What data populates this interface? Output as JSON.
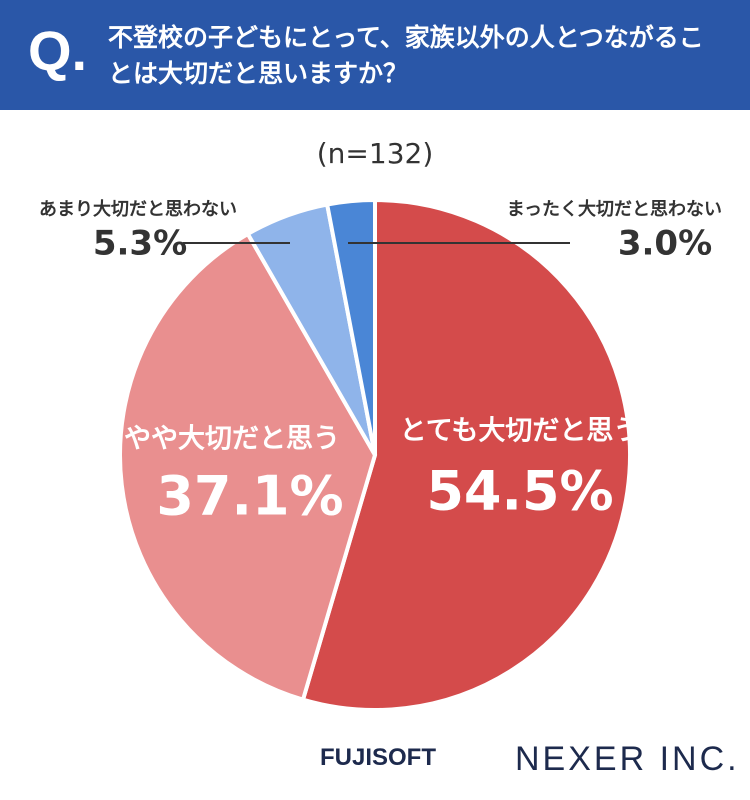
{
  "chart_data": {
    "type": "pie",
    "question_mark": "Q.",
    "title": "不登校の子どもにとって、家族以外の人とつながることは大切だと思いますか？",
    "subtitle": "(n=132)",
    "categories": [
      "とても大切だと思う",
      "やや大切だと思う",
      "あまり大切だと思わない",
      "まったく大切だと思わない"
    ],
    "values": [
      54.5,
      37.1,
      5.3,
      3.0
    ],
    "value_labels": [
      "54.5%",
      "37.1%",
      "5.3%",
      "3.0%"
    ],
    "colors": [
      "#d44b4b",
      "#e98f8f",
      "#8fb4ea",
      "#4a86d6"
    ],
    "logos": [
      "FUJISOFT",
      "NEXER INC."
    ]
  }
}
